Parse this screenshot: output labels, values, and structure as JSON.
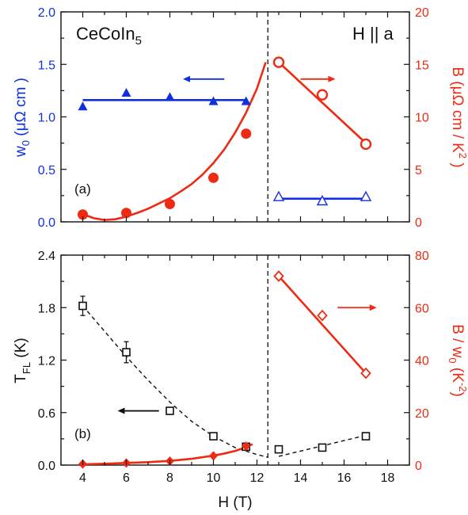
{
  "figure": {
    "shared_xlabel_main": "H",
    "shared_xlabel_unit": "(T)",
    "x_ticks": [
      "4",
      "6",
      "8",
      "10",
      "12",
      "14",
      "16",
      "18"
    ]
  },
  "colors": {
    "blue": "#1030e0",
    "red": "#ee2a12",
    "black": "#111111"
  },
  "chart_data": [
    {
      "type": "scatter",
      "panel_label": "(a)",
      "sample_label": {
        "main": "CeCoIn",
        "sub": "5"
      },
      "field_label": "H || a",
      "xlim": [
        3,
        19
      ],
      "ylim_left": [
        0,
        2.0
      ],
      "ylim_right": [
        0,
        20
      ],
      "y_left_ticks": [
        "0.0",
        "0.5",
        "1.0",
        "1.5",
        "2.0"
      ],
      "y_right_ticks": [
        "0",
        "5",
        "10",
        "15",
        "20"
      ],
      "ylabel_left": {
        "a": "w",
        "sub": "0",
        "b": " (μΩ cm )"
      },
      "ylabel_right": {
        "a": "B (μΩ cm / K",
        "sup": "2",
        "b": " )"
      },
      "boundary_x": 12.5,
      "series": [
        {
          "axis": "left",
          "marker": "triangle-filled",
          "color": "blue",
          "x": [
            4,
            6,
            8,
            10,
            11.5
          ],
          "y": [
            1.1,
            1.23,
            1.19,
            1.15,
            1.15
          ],
          "fit": {
            "kind": "flat",
            "x": [
              4,
              11.5
            ],
            "y": 1.16
          }
        },
        {
          "axis": "right",
          "marker": "circle-filled",
          "color": "red",
          "x": [
            4,
            6,
            8,
            10,
            11.5
          ],
          "y": [
            0.7,
            0.85,
            1.7,
            4.2,
            8.4
          ],
          "fit": {
            "kind": "curve",
            "x": [
              4.0,
              4.5,
              5.0,
              5.5,
              6.0,
              6.5,
              7.0,
              7.5,
              8.0,
              8.5,
              9.0,
              9.5,
              10.0,
              10.5,
              11.0,
              11.5,
              12.0,
              12.4
            ],
            "y": [
              0.75,
              0.35,
              0.18,
              0.25,
              0.5,
              0.85,
              1.25,
              1.75,
              2.25,
              2.9,
              3.6,
              4.5,
              5.6,
              6.9,
              8.5,
              10.4,
              12.7,
              15.2
            ]
          }
        },
        {
          "axis": "right",
          "marker": "circle-open",
          "color": "red",
          "x": [
            13,
            15,
            17
          ],
          "y": [
            15.2,
            12.1,
            7.4
          ],
          "fit": {
            "kind": "line",
            "x": [
              13,
              17
            ],
            "y": [
              15.2,
              7.5
            ]
          }
        },
        {
          "axis": "left",
          "marker": "triangle-open",
          "color": "blue",
          "x": [
            13,
            15,
            17
          ],
          "y": [
            0.24,
            0.2,
            0.24
          ],
          "fit": {
            "kind": "flat",
            "x": [
              13,
              17
            ],
            "y": 0.22
          }
        }
      ],
      "arrows": [
        {
          "direction": "left",
          "color": "blue",
          "from_x": 10.5,
          "to_x": 8.6,
          "axis": "left",
          "y": 1.36
        },
        {
          "direction": "right",
          "color": "red",
          "from_x": 14.0,
          "to_x": 15.6,
          "axis": "right",
          "y": 13.6
        }
      ]
    },
    {
      "type": "scatter",
      "panel_label": "(b)",
      "xlim": [
        3,
        19
      ],
      "ylim_left": [
        0,
        2.4
      ],
      "ylim_right": [
        0,
        80
      ],
      "y_left_ticks": [
        "0.0",
        "0.6",
        "1.2",
        "1.8",
        "2.4"
      ],
      "y_right_ticks": [
        "0",
        "20",
        "40",
        "60",
        "80"
      ],
      "ylabel_left": {
        "a": "T",
        "sub": "FL",
        "b": " (K)"
      },
      "ylabel_right": {
        "a": "B / w",
        "sub": "0",
        "b": " (K",
        "sup": "-2",
        "c": ")"
      },
      "boundary_x": 12.5,
      "series": [
        {
          "axis": "left",
          "marker": "square-open",
          "color": "black",
          "x": [
            4,
            6,
            8,
            10,
            11.5,
            13,
            15,
            17
          ],
          "y": [
            1.82,
            1.29,
            0.62,
            0.33,
            0.21,
            0.18,
            0.2,
            0.33
          ],
          "yerr": [
            0.11,
            0.12,
            0.04,
            0.03,
            0.03,
            0.03,
            0.03,
            0.03
          ]
        },
        {
          "axis": "left",
          "marker": "none",
          "color": "black",
          "dashed": true,
          "x": [
            4.0,
            5.0,
            6.0,
            7.0,
            8.0,
            9.0,
            10.0,
            11.0,
            12.0,
            12.5
          ],
          "y": [
            1.82,
            1.53,
            1.24,
            0.97,
            0.72,
            0.5,
            0.33,
            0.2,
            0.12,
            0.09
          ]
        },
        {
          "axis": "left",
          "marker": "none",
          "color": "black",
          "dashed": true,
          "x": [
            13.0,
            14.0,
            15.0,
            16.0,
            17.0
          ],
          "y": [
            0.1,
            0.16,
            0.22,
            0.28,
            0.34
          ]
        },
        {
          "axis": "right",
          "marker": "diamond-filled",
          "color": "red",
          "x": [
            4,
            6,
            8,
            10,
            11.5
          ],
          "y": [
            0.4,
            0.8,
            1.5,
            3.5,
            7.2
          ],
          "fit": {
            "kind": "curve",
            "x": [
              4.0,
              5.0,
              6.0,
              7.0,
              8.0,
              9.0,
              10.0,
              10.5,
              11.0,
              11.5,
              11.8
            ],
            "y": [
              0.3,
              0.5,
              0.8,
              1.1,
              1.6,
              2.4,
              3.6,
              4.4,
              5.4,
              6.8,
              8.0
            ]
          }
        },
        {
          "axis": "right",
          "marker": "diamond-open",
          "color": "red",
          "x": [
            13,
            15,
            17
          ],
          "y": [
            72,
            57,
            35
          ],
          "fit": {
            "kind": "line",
            "x": [
              13,
              17
            ],
            "y": [
              72,
              35
            ]
          }
        }
      ],
      "arrows": [
        {
          "direction": "left",
          "color": "black",
          "from_x": 7.5,
          "to_x": 5.6,
          "axis": "left",
          "y": 0.62
        },
        {
          "direction": "right",
          "color": "red",
          "from_x": 15.7,
          "to_x": 17.5,
          "axis": "right",
          "y": 60
        }
      ]
    }
  ]
}
